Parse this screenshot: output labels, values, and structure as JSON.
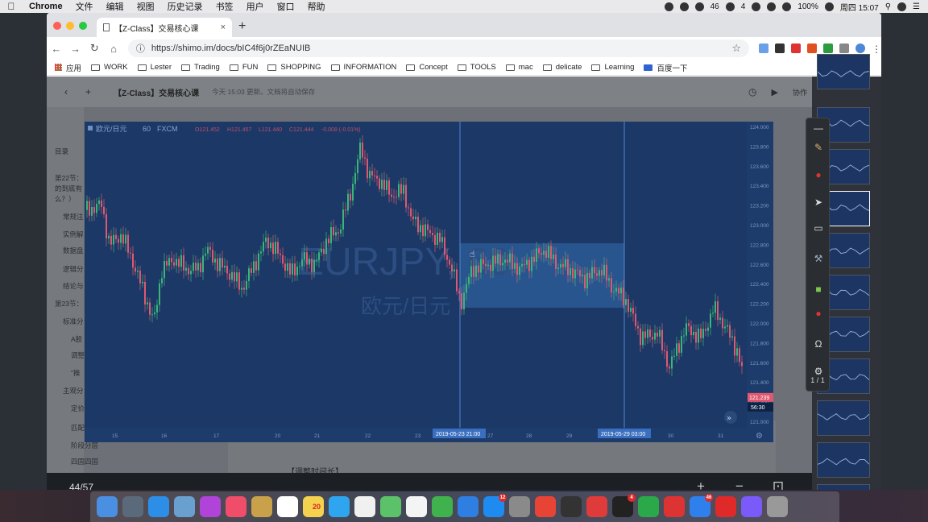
{
  "menubar": {
    "apple": "",
    "items": [
      "Chrome",
      "文件",
      "编辑",
      "视图",
      "历史记录",
      "书签",
      "用户",
      "窗口",
      "帮助"
    ],
    "status": {
      "badge1": "46",
      "badge2": "4",
      "battery": "100%",
      "day_time": "周四 15:07"
    }
  },
  "browser": {
    "tab_title": "【Z-Class】交易核心课",
    "tab_close": "×",
    "new_tab": "+",
    "url": "https://shimo.im/docs/bIC4f6j0rZEaNUIB",
    "bookmarks": [
      "应用",
      "WORK",
      "Lester",
      "Trading",
      "FUN",
      "SHOPPING",
      "INFORMATION",
      "Concept",
      "TOOLS",
      "mac",
      "delicate",
      "Learning",
      "百度一下"
    ]
  },
  "doc": {
    "title": "【Z-Class】交易核心课",
    "status": "今天 15:03 更新。文档将自动保存",
    "right_label": "协作",
    "outline": [
      "目录",
      "第22节：",
      "的到底有",
      "么？）",
      "常规注",
      "实例解",
      "数据盘",
      "逻辑分",
      "结论与",
      "第23节：",
      "标准分",
      "A股",
      "调整",
      "\"推",
      "主观分",
      "定价",
      "匹配",
      "阶段分层",
      "四国四国"
    ],
    "caption": "【调整时间长】"
  },
  "chart": {
    "symbol": "欧元/日元",
    "interval": "60",
    "source": "FXCM",
    "watermark_symbol": "EURJPY, 60",
    "watermark_name": "欧元/日元",
    "ohlc": {
      "o": "121.452",
      "h": "121.457",
      "l": "121.440",
      "c": "121.444",
      "chg": "-0.008 (-0.01%)"
    },
    "last_price": "121.239",
    "countdown": "56:30",
    "y_ticks": [
      "124.000",
      "123.800",
      "123.600",
      "123.400",
      "123.200",
      "123.000",
      "122.800",
      "122.600",
      "122.400",
      "122.200",
      "122.000",
      "121.800",
      "121.600",
      "121.400",
      "121.200",
      "121.000"
    ],
    "x_ticks": [
      "15",
      "16",
      "17",
      "20",
      "21",
      "22",
      "23",
      "27",
      "28",
      "29",
      "30",
      "31"
    ],
    "marker_left": "2019-05-23  21:00",
    "marker_right": "2019-05-29  03:00",
    "colors": {
      "bg": "#1b3866",
      "up": "#3bb57a",
      "down": "#e05870",
      "highlight": "#2f5f9c",
      "marker": "#4f86d6"
    }
  },
  "viewer": {
    "page_count": "44/57",
    "zoom_in": "+",
    "zoom_out": "−",
    "fit": "⊡",
    "full": "⊞",
    "download": "⤓"
  },
  "palette": {
    "page": "1 / 1"
  },
  "dock": [
    "Finder",
    "Launchpad",
    "Safari",
    "Preview",
    "Siri",
    "iTunes",
    "Notes",
    "Calendar",
    "Stickies",
    "Messages",
    "Reminders",
    "Maps",
    "TextEdit",
    "Numbers",
    "Keynote",
    "App Store",
    "Prefs",
    "Chrome",
    "Pixelmator",
    "Browser",
    "QQ",
    "Evernote",
    "XMind",
    "Feishu",
    "Netease",
    "Vectr",
    "Trash"
  ],
  "dock_badges": {
    "calendar_date": "20",
    "appstore": "12",
    "qq": "4",
    "feishu": "46"
  }
}
